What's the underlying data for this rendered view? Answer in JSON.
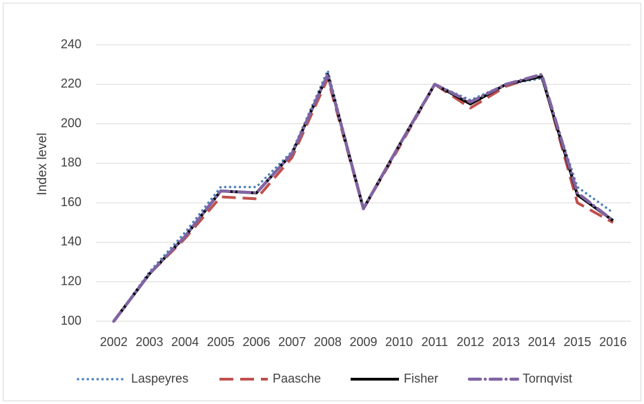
{
  "chart_data": {
    "type": "line",
    "y_label": "Index level",
    "categories": [
      "2002",
      "2003",
      "2004",
      "2005",
      "2006",
      "2007",
      "2008",
      "2009",
      "2010",
      "2011",
      "2012",
      "2013",
      "2014",
      "2015",
      "2016"
    ],
    "series": [
      {
        "name": "Laspeyres",
        "color": "#4f81bd",
        "line_style": "dotted",
        "values": [
          100,
          125,
          145,
          168,
          168,
          186,
          227,
          157,
          189,
          220,
          212,
          220,
          223,
          168,
          155
        ]
      },
      {
        "name": "Paasche",
        "color": "#c0504d",
        "line_style": "dashed",
        "values": [
          100,
          124,
          142,
          163,
          162,
          183,
          223,
          157,
          188,
          220,
          208,
          219,
          225,
          160,
          150
        ]
      },
      {
        "name": "Fisher",
        "color": "#000000",
        "line_style": "solid",
        "values": [
          100,
          124,
          143,
          166,
          165,
          185,
          225,
          157,
          189,
          220,
          210,
          220,
          224,
          164,
          151
        ]
      },
      {
        "name": "Tornqvist",
        "color": "#8064a2",
        "line_style": "dash-dot",
        "values": [
          100,
          124,
          143,
          166,
          165,
          185,
          225,
          157,
          189,
          220,
          211,
          220,
          225,
          165,
          151
        ]
      }
    ],
    "ylim": [
      100,
      240
    ],
    "yticks": [
      100,
      120,
      140,
      160,
      180,
      200,
      220,
      240
    ],
    "grid": true,
    "legend": "bottom"
  }
}
